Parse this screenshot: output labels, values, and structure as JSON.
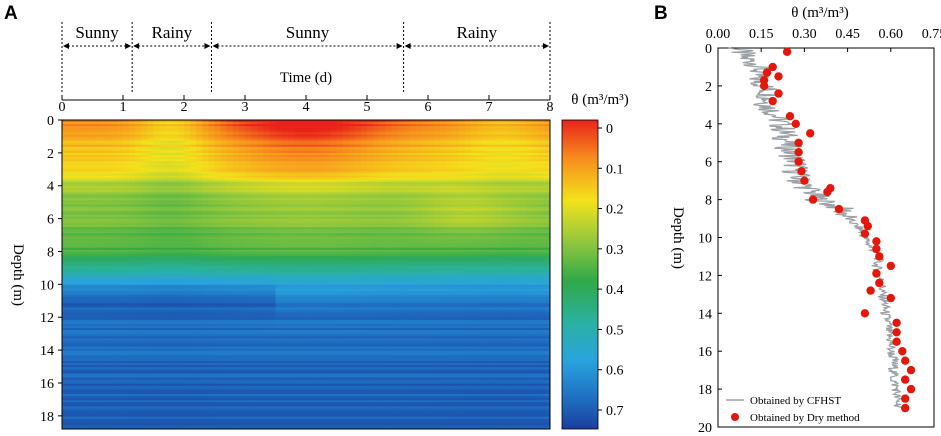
{
  "panel_a": {
    "letter": "A",
    "weather_periods": [
      {
        "label": "Sunny",
        "start": 0,
        "end": 1.15
      },
      {
        "label": "Rainy",
        "start": 1.15,
        "end": 2.45
      },
      {
        "label": "Sunny",
        "start": 2.45,
        "end": 5.6
      },
      {
        "label": "Rainy",
        "start": 5.6,
        "end": 8
      }
    ],
    "colorbar_title": "θ (m³/m³)",
    "colorbar_ticks": [
      "0",
      "0.1",
      "0.2",
      "0.3",
      "0.4",
      "0.5",
      "0.6",
      "0.7"
    ],
    "colors": {
      "wet": "#1a3f9e",
      "dry": "#e8231b"
    }
  },
  "panel_b": {
    "letter": "B",
    "legend": {
      "line": "Obtained by CFHST",
      "points": "Obtained by Dry method"
    },
    "colors": {
      "line": "#9aa0a6",
      "points": "#e3170a"
    }
  },
  "chart_data": [
    {
      "type": "heatmap",
      "title": "",
      "xlabel": "Time (d)",
      "ylabel": "Depth (m)",
      "xlim": [
        0,
        8
      ],
      "ylim": [
        0,
        18.8
      ],
      "x_ticks": [
        "0",
        "1",
        "2",
        "3",
        "4",
        "5",
        "6",
        "7",
        "8"
      ],
      "y_ticks": [
        "0",
        "2",
        "4",
        "6",
        "8",
        "10",
        "12",
        "14",
        "16",
        "18"
      ],
      "colorbar": {
        "label": "θ (m³/m³)",
        "range": [
          0,
          0.7
        ]
      },
      "depth_profile": {
        "depth": [
          0,
          1,
          2,
          3,
          4,
          5,
          6,
          7,
          8,
          9,
          10,
          11,
          12,
          13,
          14,
          15,
          16,
          17,
          18,
          18.8
        ],
        "theta_day0": [
          0.08,
          0.12,
          0.14,
          0.17,
          0.25,
          0.28,
          0.3,
          0.32,
          0.35,
          0.45,
          0.55,
          0.6,
          0.63,
          0.63,
          0.63,
          0.64,
          0.65,
          0.65,
          0.65,
          0.65
        ]
      }
    },
    {
      "type": "scatter",
      "title": "",
      "xlabel": "θ (m³/m³)",
      "ylabel": "Depth (m)",
      "xlim": [
        0,
        0.75
      ],
      "ylim": [
        0,
        20
      ],
      "x_ticks": [
        "0.00",
        "0.15",
        "0.30",
        "0.45",
        "0.60",
        "0.75"
      ],
      "y_ticks": [
        "0",
        "2",
        "4",
        "6",
        "8",
        "10",
        "12",
        "14",
        "16",
        "18",
        "20"
      ],
      "series": [
        {
          "name": "Obtained by CFHST",
          "kind": "line",
          "depth": [
            0,
            0.5,
            1.0,
            1.5,
            2.0,
            2.5,
            3.0,
            3.5,
            4.0,
            4.5,
            5.0,
            5.5,
            6.0,
            6.5,
            7.0,
            7.5,
            8.0,
            8.5,
            9.0,
            9.5,
            10.0,
            10.5,
            11.0,
            11.5,
            12.0,
            12.5,
            13.0,
            13.5,
            14.0,
            14.5,
            15.0,
            15.5,
            16.0,
            16.5,
            17.0,
            17.5,
            18.0,
            18.5,
            19.0
          ],
          "theta": [
            0.07,
            0.09,
            0.15,
            0.13,
            0.16,
            0.18,
            0.17,
            0.2,
            0.22,
            0.23,
            0.24,
            0.25,
            0.27,
            0.27,
            0.28,
            0.32,
            0.35,
            0.43,
            0.45,
            0.49,
            0.51,
            0.53,
            0.56,
            0.55,
            0.56,
            0.57,
            0.57,
            0.58,
            0.58,
            0.59,
            0.59,
            0.6,
            0.6,
            0.61,
            0.61,
            0.61,
            0.62,
            0.62,
            0.63
          ]
        },
        {
          "name": "Obtained by Dry method",
          "kind": "scatter",
          "depth": [
            0.2,
            1.0,
            1.3,
            1.5,
            1.7,
            2.0,
            2.4,
            2.8,
            3.6,
            4.0,
            4.5,
            5.0,
            5.5,
            6.0,
            6.5,
            7.0,
            7.4,
            7.6,
            8.0,
            8.5,
            9.1,
            9.4,
            9.8,
            10.2,
            10.6,
            11.0,
            11.5,
            11.9,
            12.4,
            12.8,
            13.2,
            14.0,
            14.5,
            15.0,
            15.5,
            16.0,
            16.5,
            17.0,
            17.5,
            18.0,
            18.5,
            19.0
          ],
          "theta": [
            0.24,
            0.19,
            0.17,
            0.21,
            0.16,
            0.16,
            0.21,
            0.19,
            0.25,
            0.27,
            0.32,
            0.28,
            0.28,
            0.28,
            0.29,
            0.3,
            0.39,
            0.38,
            0.33,
            0.42,
            0.51,
            0.52,
            0.51,
            0.55,
            0.55,
            0.56,
            0.6,
            0.55,
            0.56,
            0.53,
            0.6,
            0.51,
            0.62,
            0.62,
            0.62,
            0.64,
            0.65,
            0.67,
            0.65,
            0.67,
            0.65,
            0.65
          ]
        }
      ]
    }
  ]
}
